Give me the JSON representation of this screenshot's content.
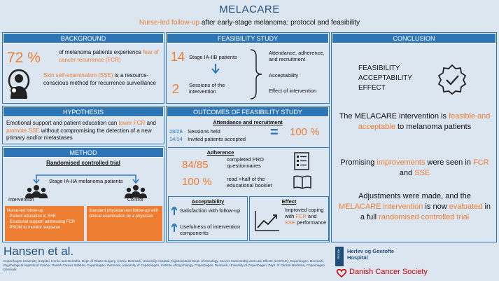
{
  "header": {
    "title": "MELACARE",
    "subtitle_part1": "Nurse-led follow-up",
    "subtitle_part2": " after early-stage melanoma: protocol and feasibility"
  },
  "background": {
    "title": "BACKGROUND",
    "stat": "72 %",
    "stat_text1": "of melanoma patients experience ",
    "stat_text2": "fear of cancer recurrence (FCR)",
    "sse1": "Skin self-examination (SSE)",
    "sse2": " is a resource-conscious method for recurrence surveillance"
  },
  "feasibility": {
    "title": "FEASIBILITY STUDY",
    "n1": "14",
    "n1_label": "Stage IA-IIB patients",
    "n2": "2",
    "n2_label": "Sessions of the intervention",
    "outcomes": [
      "Attendance, adherence, and recruitment",
      "Acceptability",
      "Effect of intervention"
    ]
  },
  "conclusion": {
    "title": "CONCLUSION",
    "words": [
      "FEASIBILITY",
      "ACCEPTABILITY",
      "EFFECT"
    ],
    "p1a": "The MELACARE intervention is ",
    "p1b": "feasible and acceptable",
    "p1c": " to melanoma patients",
    "p2a": "Promising ",
    "p2b": "improvements",
    "p2c": " were seen in ",
    "p2d": "FCR",
    "p2e": " and ",
    "p2f": "SSE",
    "p3a": "Adjustments were made, and the ",
    "p3b": "MELACARE intervention",
    "p3c": " is now ",
    "p3d": "evaluated",
    "p3e": " in a full ",
    "p3f": "randomised controlled trial"
  },
  "hypothesis": {
    "title": "HYPOTHESIS",
    "t1": "Emotional support and patient education can ",
    "t2": "lower FCR",
    "t3": " and ",
    "t4": "promote SSE",
    "t5": " without compromising the detection of a new primary and/or metastases"
  },
  "outcomes": {
    "title": "OUTCOMES OF FEASIBILITY STUDY",
    "attendance_title": "Attendance and recruitment",
    "rows": [
      {
        "num": "28/28",
        "label": "Sessions held"
      },
      {
        "num": "14/14",
        "label": "Invited patients accepted"
      }
    ],
    "equals": "=",
    "pct": "100 %",
    "adherence_title": "Adherence",
    "adh": [
      {
        "num": "84/85",
        "label": "completed PRO questionnaires"
      },
      {
        "num": "100 %",
        "label": "read >half of the educational booklet"
      }
    ],
    "accept_title": "Acceptability",
    "accept": [
      "Satisfaction with follow-up",
      "Usefulness of intervention components"
    ],
    "effect_title": "Effect",
    "effect1": "Improved coping with ",
    "effect2": "FCR",
    "effect3": " and ",
    "effect4": "SSE",
    "effect5": " performance"
  },
  "method": {
    "title": "METHOD",
    "rct": "Randomised controlled trial",
    "population": "Stage IA-IIA melanoma patients",
    "intervention": "Intervention",
    "control": "Control",
    "left_box": [
      "Nurse-led follow-up",
      "Patient education in SSE",
      "Emotional support addressing FCR",
      "PROM to monitor sequelae"
    ],
    "right_box": "Standard physician-led follow-up with clinical examination by a physician"
  },
  "footer": {
    "author": "Hansen et al.",
    "affil": "Copenhagen University Hospital, Herlev and Gentofte, Dept. of Plastic Surgery, Herlev, Denmark, University Hospital, Rigshospitalet Dept. of Oncology, Cancer Survivorship and Late Effects (CASTLE), Copenhagen, Denmark, Psychological Aspects of Cancer, Danish Cancer Institute, Copenhagen, Denmark, University of Copenhagen, Institute of Psychology, Copenhagen, Denmark, University of Copenhagen, Dept. of Clinical Medicine, Copenhagen Denmark",
    "hospital": "Herlev og Gentofte Hospital",
    "region": "REGION",
    "society": "Danish Cancer Society"
  }
}
